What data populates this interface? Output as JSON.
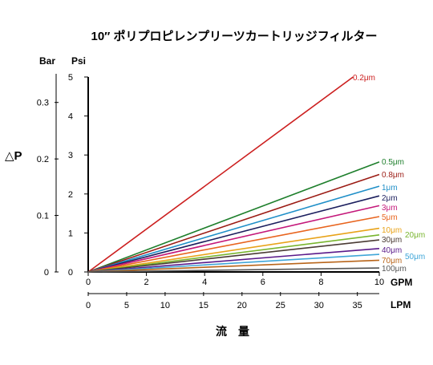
{
  "chart_data": {
    "type": "line",
    "title": "10″ ポリプロピレンプリーツカートリッジフィルター",
    "ylabel": "△P",
    "xlabel": "流　量",
    "y_axes": [
      {
        "unit": "Bar",
        "range": [
          0,
          0.345
        ],
        "ticks": [
          "0",
          "0.1",
          "0.2",
          "0.3"
        ],
        "tick_values": [
          0,
          0.1,
          0.2,
          0.3
        ]
      },
      {
        "unit": "Psi",
        "range": [
          0,
          5
        ],
        "ticks": [
          "0",
          "1",
          "2",
          "3",
          "4",
          "5"
        ],
        "tick_values": [
          0,
          1,
          2,
          3,
          4,
          5
        ]
      }
    ],
    "x_axes": [
      {
        "unit": "GPM",
        "range": [
          0,
          10
        ],
        "ticks": [
          "0",
          "2",
          "4",
          "6",
          "8",
          "10"
        ],
        "tick_values": [
          0,
          2,
          4,
          6,
          8,
          10
        ]
      },
      {
        "unit": "LPM",
        "range": [
          0,
          37.85
        ],
        "ticks": [
          "0",
          "5",
          "10",
          "15",
          "20",
          "25",
          "30",
          "35"
        ],
        "tick_values": [
          0,
          5,
          10,
          15,
          20,
          25,
          30,
          35
        ]
      }
    ],
    "series": [
      {
        "name": "0.2μm",
        "color": "#cc1f1f",
        "x": [
          0,
          9.1
        ],
        "y": [
          0,
          5.0
        ]
      },
      {
        "name": "0.5μm",
        "color": "#1e7f2c",
        "x": [
          0,
          10
        ],
        "y": [
          0,
          2.82
        ]
      },
      {
        "name": "0.8μm",
        "color": "#9b1b14",
        "x": [
          0,
          10
        ],
        "y": [
          0,
          2.5
        ]
      },
      {
        "name": "1μm",
        "color": "#1f8fc8",
        "x": [
          0,
          10
        ],
        "y": [
          0,
          2.2
        ]
      },
      {
        "name": "2μm",
        "color": "#1c1f5e",
        "x": [
          0,
          10
        ],
        "y": [
          0,
          1.95
        ]
      },
      {
        "name": "3μm",
        "color": "#c4187a",
        "x": [
          0,
          10
        ],
        "y": [
          0,
          1.7
        ]
      },
      {
        "name": "5μm",
        "color": "#e8641e",
        "x": [
          0,
          10
        ],
        "y": [
          0,
          1.42
        ]
      },
      {
        "name": "10μm",
        "color": "#e8a31a",
        "x": [
          0,
          10
        ],
        "y": [
          0,
          1.12
        ]
      },
      {
        "name": "20μm",
        "color": "#79b52f",
        "x": [
          0,
          10
        ],
        "y": [
          0,
          0.95
        ]
      },
      {
        "name": "30μm",
        "color": "#4a3b34",
        "x": [
          0,
          10
        ],
        "y": [
          0,
          0.82
        ]
      },
      {
        "name": "40μm",
        "color": "#5a1a8a",
        "x": [
          0,
          10
        ],
        "y": [
          0,
          0.6
        ]
      },
      {
        "name": "50μm",
        "color": "#3fa6d8",
        "x": [
          0,
          10
        ],
        "y": [
          0,
          0.45
        ]
      },
      {
        "name": "70μm",
        "color": "#b8651a",
        "x": [
          0,
          10
        ],
        "y": [
          0,
          0.3
        ]
      },
      {
        "name": "100μm",
        "color": "#555555",
        "x": [
          0,
          10
        ],
        "y": [
          0,
          0.1
        ]
      }
    ],
    "grid": false,
    "legend": "inline-right"
  }
}
